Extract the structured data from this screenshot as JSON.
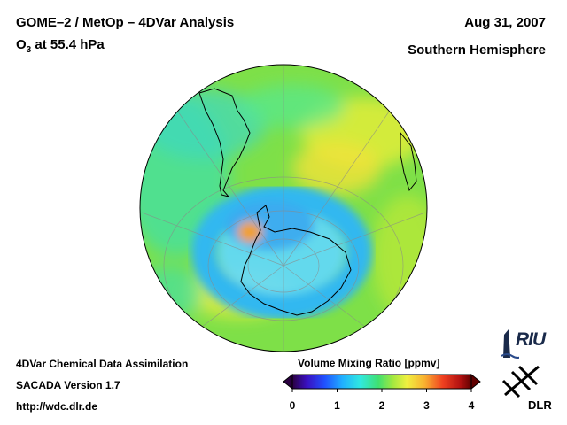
{
  "header": {
    "title": "GOME–2 / MetOp – 4DVar Analysis",
    "subtitle_prefix": "O",
    "subtitle_sub": "3",
    "subtitle_suffix": " at 55.4 hPa",
    "date": "Aug 31, 2007",
    "region": "Southern Hemisphere"
  },
  "footer": {
    "line1": "4DVar Chemical Data Assimilation",
    "line2": "SACADA Version 1.7",
    "line3": "http://wdc.dlr.de"
  },
  "colorbar": {
    "title": "Volume Mixing Ratio [ppmv]",
    "ticks": [
      "0",
      "1",
      "2",
      "3",
      "4"
    ],
    "tick_values": [
      0,
      1,
      2,
      3,
      4
    ],
    "range": [
      0,
      4
    ]
  },
  "logos": {
    "riu": "RIU",
    "dlr": "DLR"
  },
  "map": {
    "projection": "orthographic",
    "hemisphere": "south-polar",
    "continents": [
      "south-america",
      "antarctica",
      "africa-tip"
    ]
  }
}
